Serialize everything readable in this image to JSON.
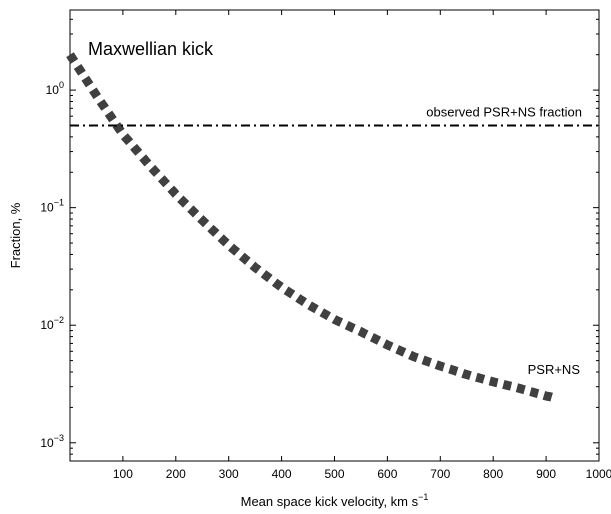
{
  "chart_data": {
    "type": "line",
    "title": "",
    "xlabel": "Mean space kick velocity, km s",
    "xlabel_sup": "−1",
    "ylabel": "Fraction, %",
    "xlim": [
      0,
      1000
    ],
    "ylim": [
      0.0007,
      4.8
    ],
    "yscale": "log",
    "x_ticks": [
      100,
      200,
      300,
      400,
      500,
      600,
      700,
      800,
      900,
      1000
    ],
    "y_ticks": [
      {
        "value": 1,
        "base": "10",
        "exp": "0"
      },
      {
        "value": 0.1,
        "base": "10",
        "exp": "−1"
      },
      {
        "value": 0.01,
        "base": "10",
        "exp": "−2"
      },
      {
        "value": 0.001,
        "base": "10",
        "exp": "−3"
      }
    ],
    "series": [
      {
        "name": "PSR+NS",
        "style": "thick-dashed",
        "color": "#404040",
        "x": [
          0,
          50,
          100,
          150,
          200,
          250,
          300,
          350,
          400,
          450,
          500,
          550,
          600,
          650,
          700,
          750,
          800,
          850,
          900,
          920
        ],
        "y": [
          2.0,
          0.9,
          0.42,
          0.23,
          0.13,
          0.078,
          0.048,
          0.031,
          0.021,
          0.015,
          0.0112,
          0.0088,
          0.0068,
          0.0054,
          0.0045,
          0.0038,
          0.0033,
          0.0029,
          0.0025,
          0.0024
        ]
      },
      {
        "name": "observed PSR+NS fraction",
        "style": "dash-dot",
        "color": "#000000",
        "x": [
          0,
          1000
        ],
        "y": [
          0.5,
          0.5
        ]
      }
    ],
    "annotations": {
      "panel_label": "Maxwellian kick",
      "hline_label": "observed PSR+NS fraction",
      "curve_label": "PSR+NS"
    }
  }
}
